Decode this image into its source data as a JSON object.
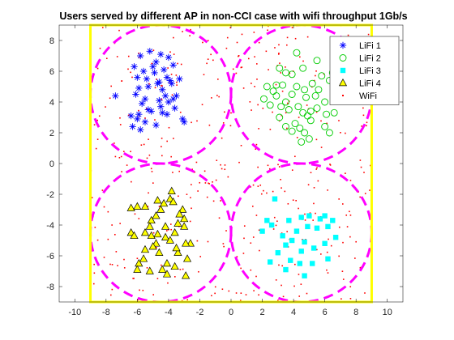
{
  "chart_data": {
    "type": "scatter",
    "title": "Users served by different AP in non-CCI case with wifi throughput 1Gb/s",
    "xlabel": "",
    "ylabel": "",
    "xlim": [
      -11,
      11
    ],
    "ylim": [
      -9,
      9
    ],
    "xticks": [
      -10,
      -8,
      -6,
      -4,
      -2,
      0,
      2,
      4,
      6,
      8,
      10
    ],
    "yticks": [
      -8,
      -6,
      -4,
      -2,
      0,
      2,
      4,
      6,
      8
    ],
    "grid": false,
    "legend_position": "top-right",
    "room_boundary": {
      "x": [
        -9,
        9
      ],
      "y": [
        -9,
        9
      ],
      "color": "#ffff00"
    },
    "coverage_circles": [
      {
        "cx": -4.5,
        "cy": 4.5,
        "r": 4.5
      },
      {
        "cx": 4.5,
        "cy": 4.5,
        "r": 4.5
      },
      {
        "cx": 4.5,
        "cy": -4.5,
        "r": 4.5
      },
      {
        "cx": -4.5,
        "cy": -4.5,
        "r": 4.5
      }
    ],
    "circle_color": "#ff00ff",
    "series": [
      {
        "name": "LiFi 1",
        "marker": "asterisk",
        "color": "#0000ff",
        "x": [
          -5.8,
          -5.2,
          -4.8,
          -4.5,
          -4.0,
          -3.7,
          -6.2,
          -5.6,
          -5.0,
          -4.3,
          -3.9,
          -6.0,
          -5.4,
          -4.9,
          -4.6,
          -4.1,
          -3.8,
          -5.9,
          -5.3,
          -4.7,
          -4.4,
          -3.3,
          -6.1,
          -5.5,
          -4.2,
          -3.7,
          -3.5,
          -5.7,
          -5.1,
          -4.6,
          -4.0,
          -3.6,
          -5.9,
          -5.3,
          -4.4,
          -7.4,
          -6.4,
          -4.1,
          -3.1,
          -3.0,
          -6.3,
          -5.5,
          -5.8,
          -6.0,
          -4.8,
          -4.5
        ],
        "y": [
          7.0,
          7.3,
          6.6,
          7.1,
          6.9,
          6.4,
          6.3,
          6.0,
          6.3,
          6.1,
          5.4,
          5.6,
          5.5,
          5.9,
          5.3,
          5.6,
          5.2,
          4.9,
          5.0,
          5.2,
          4.8,
          5.5,
          4.5,
          4.2,
          4.4,
          4.2,
          4.4,
          3.9,
          3.4,
          4.1,
          4.0,
          3.6,
          3.2,
          3.5,
          3.3,
          4.4,
          3.1,
          3.2,
          2.9,
          2.7,
          2.4,
          2.7,
          2.2,
          2.9,
          2.5,
          3.7
        ]
      },
      {
        "name": "LiFi 2",
        "marker": "circle",
        "color": "#00cc00",
        "x": [
          3.1,
          3.5,
          2.9,
          4.6,
          3.9,
          2.3,
          2.7,
          3.3,
          4.2,
          5.2,
          4.7,
          5.6,
          6.3,
          2.9,
          3.5,
          3.9,
          4.8,
          5.4,
          6.0,
          5.5,
          3.2,
          3.7,
          4.3,
          4.6,
          5.1,
          4.9,
          2.5,
          3.1,
          6.1,
          4.1,
          3.5,
          5.1,
          6.6,
          6.3,
          6.0,
          4.7,
          3.9,
          4.4,
          5.0,
          4.5,
          2.1,
          5.8,
          6.5,
          7.1,
          6.8,
          5.5,
          4.2
        ],
        "y": [
          6.2,
          5.9,
          5.1,
          6.2,
          5.8,
          5.0,
          4.7,
          5.1,
          5.0,
          5.2,
          4.8,
          4.8,
          5.4,
          4.4,
          4.0,
          4.5,
          4.3,
          4.4,
          4.0,
          3.6,
          3.7,
          3.5,
          3.7,
          3.3,
          3.4,
          3.1,
          3.8,
          3.0,
          3.2,
          2.6,
          2.4,
          2.8,
          3.3,
          2.0,
          2.4,
          2.0,
          2.1,
          2.3,
          1.6,
          1.4,
          4.2,
          5.7,
          5.9,
          4.2,
          4.5,
          6.7,
          7.2
        ]
      },
      {
        "name": "LiFi 3",
        "marker": "square",
        "color": "#00ffff",
        "x": [
          2.8,
          2.3,
          3.7,
          4.5,
          5.0,
          6.0,
          6.7,
          5.5,
          4.9,
          3.3,
          4.2,
          5.7,
          6.2,
          6.5,
          3.5,
          3.9,
          4.7,
          6.0,
          2.0,
          2.6,
          5.3,
          3.0,
          4.5,
          3.8,
          6.2,
          5.2,
          4.4,
          4.7,
          3.5,
          2.5
        ],
        "y": [
          -2.3,
          -3.7,
          -3.7,
          -3.5,
          -3.4,
          -3.4,
          -4.8,
          -4.2,
          -4.1,
          -4.7,
          -4.4,
          -3.6,
          -4.1,
          -3.7,
          -5.3,
          -5.0,
          -5.1,
          -5.2,
          -4.4,
          -4.0,
          -5.5,
          -5.8,
          -5.7,
          -6.3,
          -6.2,
          -6.5,
          -6.5,
          -7.3,
          -6.9,
          -6.4
        ]
      },
      {
        "name": "LiFi 4",
        "marker": "triangle",
        "color": "#ffff00",
        "x": [
          -3.8,
          -3.9,
          -4.7,
          -4.3,
          -6.4,
          -6.0,
          -5.5,
          -3.7,
          -3.1,
          -3.0,
          -3.3,
          -4.5,
          -4.8,
          -5.1,
          -3.4,
          -4.2,
          -5.5,
          -5.2,
          -3.6,
          -3.0,
          -4.7,
          -4.2,
          -3.9,
          -2.6,
          -5.1,
          -4.8,
          -2.9,
          -3.4,
          -6.4,
          -6.2,
          -5.0,
          -5.5,
          -5.6,
          -4.6,
          -3.5,
          -5.9,
          -4.1,
          -2.8,
          -5.2,
          -6.0,
          -3.6,
          -4.1,
          -4.4,
          -2.9
        ],
        "y": [
          -1.8,
          -2.3,
          -2.4,
          -2.6,
          -2.9,
          -2.8,
          -2.8,
          -2.5,
          -3.0,
          -3.6,
          -3.3,
          -3.0,
          -3.4,
          -3.7,
          -3.9,
          -4.1,
          -4.5,
          -4.1,
          -4.5,
          -4.1,
          -4.6,
          -4.8,
          -5.0,
          -5.2,
          -4.7,
          -5.2,
          -5.2,
          -5.8,
          -4.5,
          -4.7,
          -5.4,
          -5.6,
          -6.2,
          -5.8,
          -5.5,
          -6.5,
          -6.5,
          -6.2,
          -7.0,
          -6.9,
          -6.7,
          -7.2,
          -6.9,
          -7.3
        ]
      },
      {
        "name": "WiFi",
        "marker": "dot",
        "color": "#ff0000",
        "x": [],
        "y": []
      }
    ],
    "wifi_dot_count": 430
  }
}
